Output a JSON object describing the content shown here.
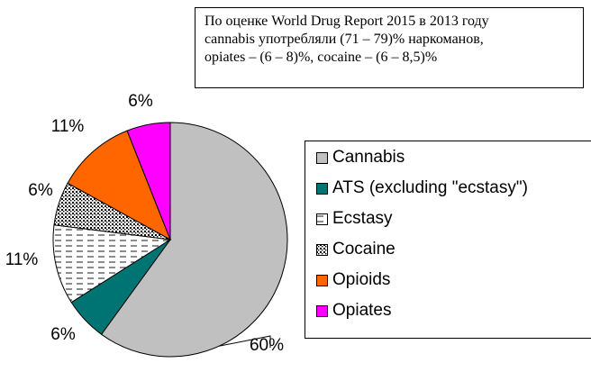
{
  "note": {
    "lines": [
      "По оценке World Drug Report 2015  в 2013 году",
      "cannabis употребляли (71 – 79)%  наркоманов,",
      "opiates – (6 – 8)%, cocaine – (6 – 8,5)%"
    ]
  },
  "chart_data": {
    "type": "pie",
    "title": "",
    "legend_placement": "right",
    "slices": [
      {
        "name": "Cannabis",
        "label": "60%",
        "value": 60,
        "color": "#c0c0c0",
        "pattern": "solid"
      },
      {
        "name": "ATS (excluding \"ecstasy\")",
        "label": "6%",
        "value": 6,
        "color": "#007373",
        "pattern": "solid"
      },
      {
        "name": "Ecstasy",
        "label": "11%",
        "value": 11,
        "color": "#ffffff",
        "pattern": "dashed-lines"
      },
      {
        "name": "Cocaine",
        "label": "6%",
        "value": 6,
        "color": "#ffffff",
        "pattern": "dots"
      },
      {
        "name": "Opioids",
        "label": "11%",
        "value": 11,
        "color": "#ff6600",
        "pattern": "solid"
      },
      {
        "name": "Opiates",
        "label": "6%",
        "value": 6,
        "color": "#ff00ff",
        "pattern": "solid"
      }
    ]
  }
}
